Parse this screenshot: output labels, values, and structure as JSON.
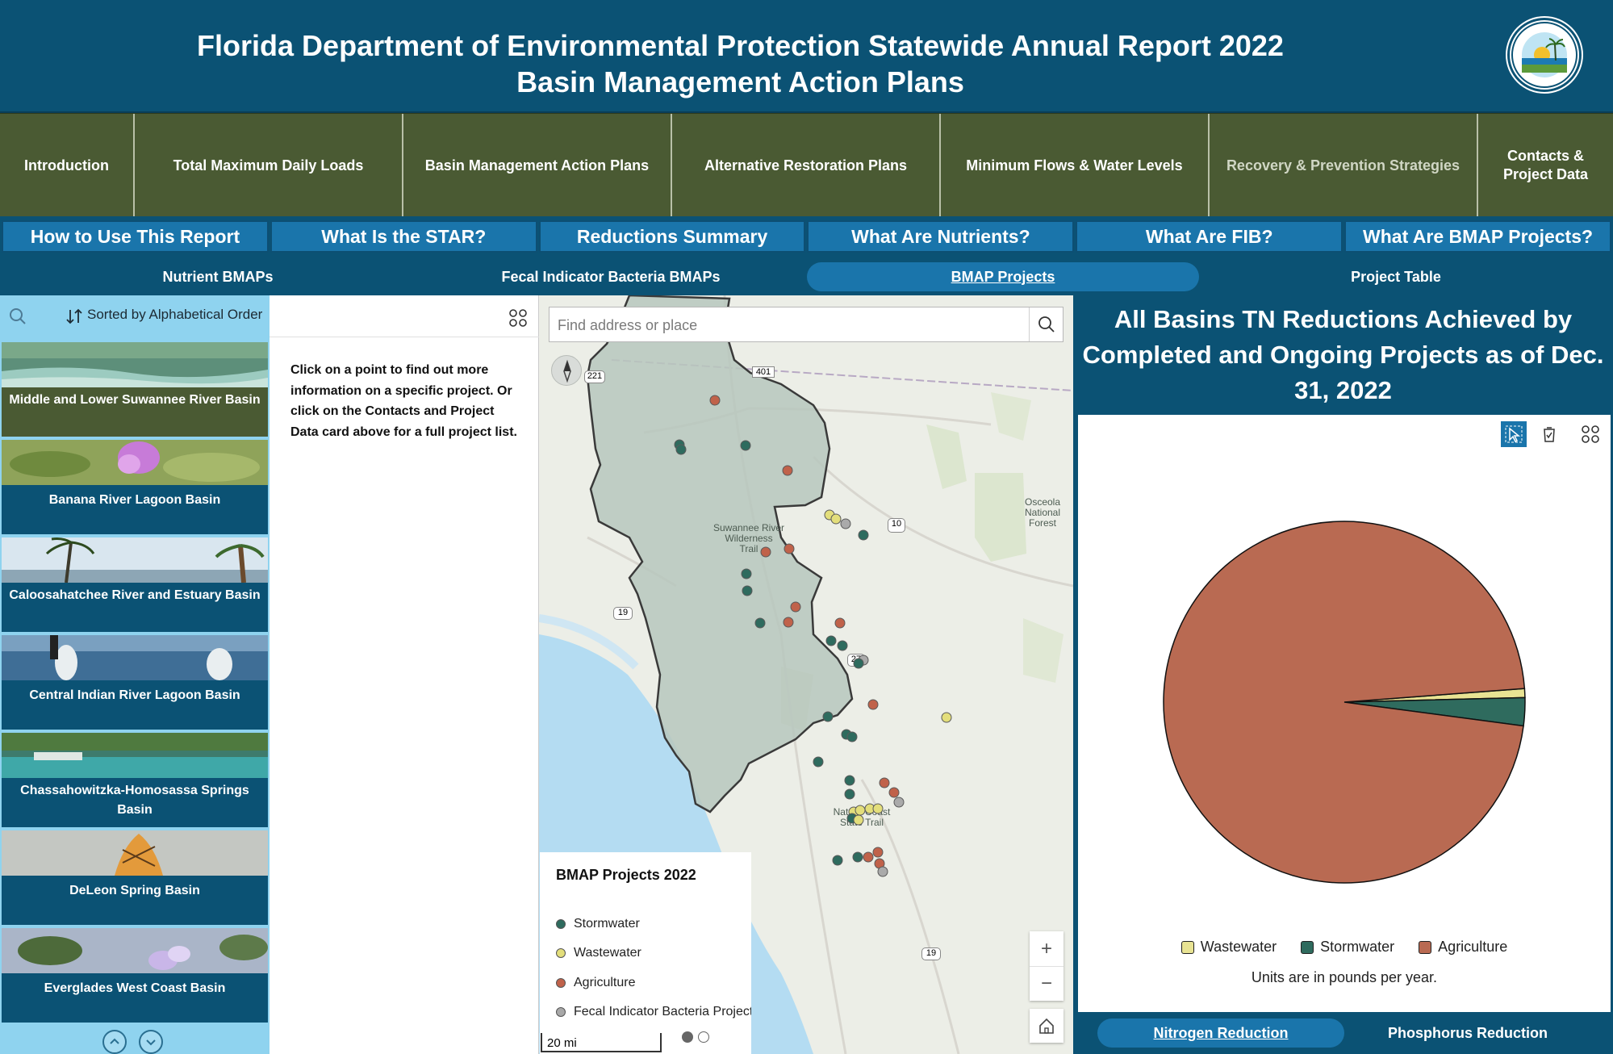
{
  "header": {
    "title_line1": "Florida Department of Environmental Protection Statewide Annual Report 2022",
    "title_line2": "Basin Management Action Plans",
    "logo_icon": "fdep-seal-icon"
  },
  "nav_primary": [
    {
      "label": "Introduction"
    },
    {
      "label": "Total Maximum Daily Loads"
    },
    {
      "label": "Basin Management Action Plans"
    },
    {
      "label": "Alternative Restoration Plans"
    },
    {
      "label": "Minimum Flows & Water Levels"
    },
    {
      "label": "Recovery & Prevention Strategies"
    },
    {
      "label": "Contacts & Project Data"
    }
  ],
  "nav_secondary": [
    {
      "label": "How to Use This Report"
    },
    {
      "label": "What Is the STAR?"
    },
    {
      "label": "Reductions Summary"
    },
    {
      "label": "What Are Nutrients?"
    },
    {
      "label": "What Are FIB?"
    },
    {
      "label": "What Are BMAP Projects?"
    }
  ],
  "nav_tertiary": [
    {
      "label": "Nutrient BMAPs"
    },
    {
      "label": "Fecal Indicator Bacteria BMAPs"
    },
    {
      "label": "BMAP Projects",
      "active": true
    },
    {
      "label": "Project Table"
    }
  ],
  "basin_list": {
    "sort_label": "Sorted by Alphabetical Order",
    "items": [
      {
        "name": "Middle and Lower Suwannee River Basin",
        "selected": true
      },
      {
        "name": "Banana River Lagoon Basin"
      },
      {
        "name": "Caloosahatchee River and Estuary Basin"
      },
      {
        "name": "Central Indian River Lagoon Basin"
      },
      {
        "name": "Chassahowitzka-Homosassa Springs Basin"
      },
      {
        "name": "DeLeon Spring Basin"
      },
      {
        "name": "Everglades West Coast Basin"
      }
    ]
  },
  "info_panel": {
    "text": "Click on a point to find out more information on a specific project. Or click on the Contacts and Project Data card above for a full project list."
  },
  "map": {
    "search_placeholder": "Find address or place",
    "labels": {
      "trail1": "Suwannee River",
      "trail2": "Wilderness",
      "trail3": "Trail",
      "forest1": "Osceola",
      "forest2": "National",
      "forest3": "Forest",
      "state1": "Nature Coast",
      "state2": "State Trail"
    },
    "route_shields": [
      "221",
      "401",
      "10",
      "19",
      "27",
      "19"
    ],
    "scale": "20 mi",
    "legend": {
      "title": "BMAP Projects 2022",
      "items": [
        {
          "label": "Stormwater",
          "color": "#2e6b5e"
        },
        {
          "label": "Wastewater",
          "color": "#e3de7b"
        },
        {
          "label": "Agriculture",
          "color": "#c0624a"
        },
        {
          "label": "Fecal Indicator Bacteria Projects",
          "color": "#a8a8a8"
        }
      ]
    }
  },
  "chart_panel": {
    "title": "All Basins TN Reductions Achieved by Completed and Ongoing Projects as of Dec. 31, 2022",
    "units_note": "Units are in pounds per year.",
    "tabs": [
      {
        "label": "Nitrogen Reduction",
        "active": true
      },
      {
        "label": "Phosphorus Reduction"
      }
    ]
  },
  "chart_data": {
    "type": "pie",
    "title": "All Basins TN Reductions Achieved by Completed and Ongoing Projects as of Dec. 31, 2022",
    "legend_position": "bottom",
    "categories": [
      "Wastewater",
      "Stormwater",
      "Agriculture"
    ],
    "values": [
      0.8,
      2.5,
      96.7
    ],
    "value_unit": "percent of total (pounds per year)",
    "colors": [
      "#e8e393",
      "#2f6b5e",
      "#b96a52"
    ]
  }
}
